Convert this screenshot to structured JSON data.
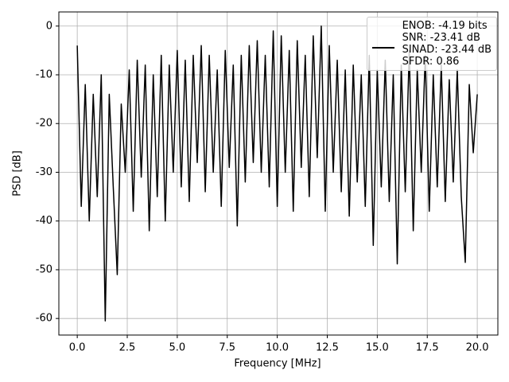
{
  "chart_data": {
    "type": "line",
    "x_label": "Frequency [MHz]",
    "y_label": "PSD [dB]",
    "x": [
      0,
      0.2,
      0.4,
      0.6,
      0.8,
      1,
      1.2,
      1.4,
      1.6,
      1.8,
      2,
      2.2,
      2.4,
      2.6,
      2.8,
      3,
      3.2,
      3.4,
      3.6,
      3.8,
      4,
      4.2,
      4.4,
      4.6,
      4.8,
      5,
      5.2,
      5.4,
      5.6,
      5.8,
      6,
      6.2,
      6.4,
      6.6,
      6.8,
      7,
      7.2,
      7.4,
      7.6,
      7.8,
      8,
      8.2,
      8.4,
      8.6,
      8.8,
      9,
      9.2,
      9.4,
      9.6,
      9.8,
      10,
      10.2,
      10.4,
      10.6,
      10.8,
      11,
      11.2,
      11.4,
      11.6,
      11.8,
      12,
      12.2,
      12.4,
      12.6,
      12.8,
      13,
      13.2,
      13.4,
      13.6,
      13.8,
      14,
      14.2,
      14.4,
      14.6,
      14.8,
      15,
      15.2,
      15.4,
      15.6,
      15.8,
      16,
      16.2,
      16.4,
      16.6,
      16.8,
      17,
      17.2,
      17.4,
      17.6,
      17.8,
      18,
      18.2,
      18.4,
      18.6,
      18.8,
      19,
      19.2,
      19.4,
      19.6,
      19.8,
      20
    ],
    "series": [
      {
        "name": "ENOB: -4.19 bits\nSNR: -23.41 dB\nSINAD: -23.44 dB\nSFDR: 0.86",
        "color": "#000000",
        "values": [
          -4,
          -37,
          -12,
          -40,
          -14,
          -35,
          -10,
          -60.5,
          -14,
          -33,
          -51,
          -16,
          -30,
          -9,
          -38,
          -7,
          -31,
          -8,
          -42,
          -10,
          -35,
          -6,
          -40,
          -8,
          -30,
          -5,
          -33,
          -7,
          -36,
          -6,
          -28,
          -4,
          -34,
          -6,
          -30,
          -9,
          -37,
          -5,
          -29,
          -8,
          -41,
          -6,
          -32,
          -4,
          -28,
          -3,
          -30,
          -6,
          -33,
          -1,
          -37,
          -2,
          -30,
          -5,
          -38,
          -3,
          -29,
          -6,
          -35,
          -2,
          -27,
          0,
          -38,
          -4,
          -30,
          -7,
          -34,
          -9,
          -39,
          -8,
          -32,
          -10,
          -37,
          -6,
          -45,
          -9,
          -33,
          -7,
          -36,
          -10,
          -48.8,
          -8,
          -34,
          -5,
          -42,
          -9,
          -30,
          -6,
          -38,
          -10,
          -33,
          -8,
          -36,
          -11,
          -32,
          -9,
          -35,
          -48.5,
          -12,
          -26,
          -14
        ]
      }
    ],
    "xlim": [
      -0.92,
      21.03
    ],
    "ylim": [
      -63.4,
      2.9
    ],
    "xticks": [
      {
        "value": 0,
        "label": "0.0"
      },
      2.5,
      {
        "value": 5,
        "label": "5.0"
      },
      7.5,
      {
        "value": 10,
        "label": "10.0"
      },
      12.5,
      {
        "value": 15,
        "label": "15.0"
      },
      17.5,
      {
        "value": 20,
        "label": "20.0"
      }
    ],
    "yticks": [
      0,
      -10,
      -20,
      -30,
      -40,
      -50,
      -60
    ],
    "grid": true,
    "legend": "upper right"
  }
}
